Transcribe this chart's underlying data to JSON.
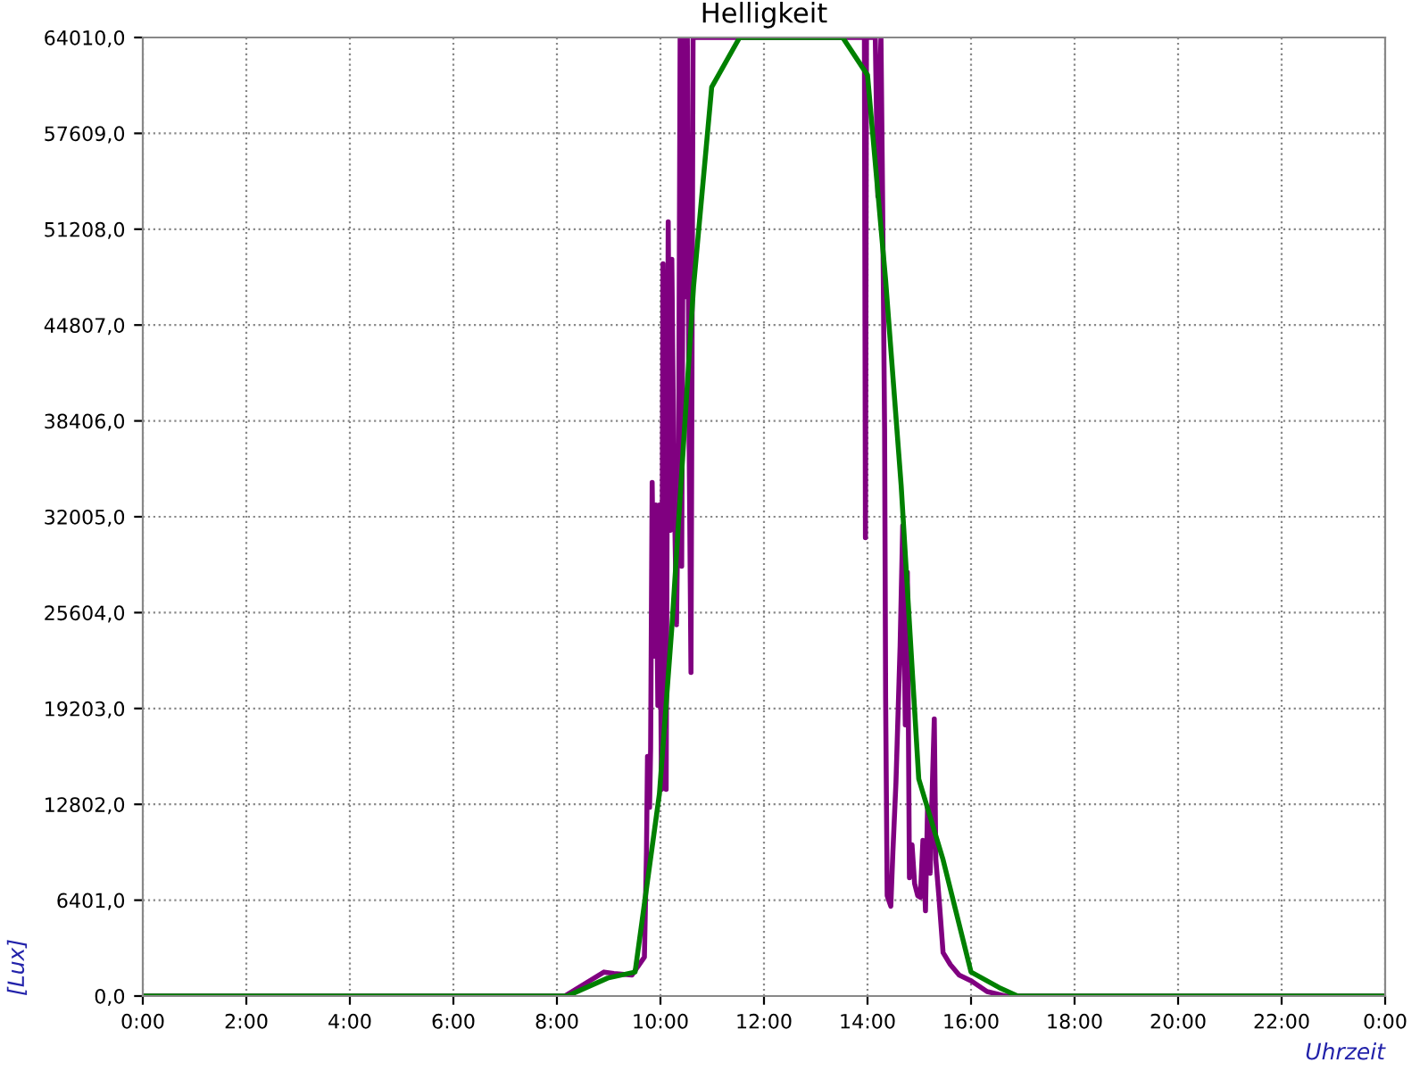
{
  "chart_data": {
    "type": "line",
    "title": "Helligkeit",
    "xlabel": "Uhrzeit",
    "ylabel": "[Lux]",
    "xlim": [
      0,
      24
    ],
    "xticks": [
      {
        "value": 0,
        "label": "0:00"
      },
      {
        "value": 2,
        "label": "2:00"
      },
      {
        "value": 4,
        "label": "4:00"
      },
      {
        "value": 6,
        "label": "6:00"
      },
      {
        "value": 8,
        "label": "8:00"
      },
      {
        "value": 10,
        "label": "10:00"
      },
      {
        "value": 12,
        "label": "12:00"
      },
      {
        "value": 14,
        "label": "14:00"
      },
      {
        "value": 16,
        "label": "16:00"
      },
      {
        "value": 18,
        "label": "18:00"
      },
      {
        "value": 20,
        "label": "20:00"
      },
      {
        "value": 22,
        "label": "22:00"
      },
      {
        "value": 24,
        "label": "0:00"
      }
    ],
    "ylim": [
      0,
      64010
    ],
    "yticks": [
      {
        "value": 0,
        "label": "0,0"
      },
      {
        "value": 6401,
        "label": "6401,0"
      },
      {
        "value": 12802,
        "label": "12802,0"
      },
      {
        "value": 19203,
        "label": "19203,0"
      },
      {
        "value": 25604,
        "label": "25604,0"
      },
      {
        "value": 32005,
        "label": "32005,0"
      },
      {
        "value": 38406,
        "label": "38406,0"
      },
      {
        "value": 44807,
        "label": "44807,0"
      },
      {
        "value": 51208,
        "label": "51208,0"
      },
      {
        "value": 57609,
        "label": "57609,0"
      },
      {
        "value": 64010,
        "label": "64010,0"
      }
    ],
    "grid": true,
    "marker": "none",
    "line_style": "solid",
    "series": [
      {
        "color": "#800080",
        "x": [
          0,
          8.15,
          8.91,
          9.1,
          9.45,
          9.69,
          9.73,
          9.75,
          9.79,
          9.81,
          9.84,
          9.88,
          9.91,
          9.95,
          9.98,
          10.02,
          10.05,
          10.08,
          10.11,
          10.15,
          10.19,
          10.22,
          10.26,
          10.31,
          10.35,
          10.38,
          10.41,
          10.45,
          10.48,
          10.52,
          10.55,
          10.59,
          10.63,
          13.94,
          13.96,
          13.98,
          14.15,
          14.2,
          14.22,
          14.26,
          14.29,
          14.33,
          14.35,
          14.38,
          14.45,
          14.49,
          14.55,
          14.63,
          14.68,
          14.73,
          14.77,
          14.81,
          14.86,
          14.91,
          14.97,
          15.02,
          15.07,
          15.12,
          15.16,
          15.21,
          15.24,
          15.29,
          15.32,
          15.38,
          15.46,
          15.6,
          15.77,
          16.01,
          16.31,
          16.66,
          24
        ],
        "values": [
          0,
          0,
          1600,
          1500,
          1400,
          2600,
          9600,
          16000,
          12600,
          16500,
          34300,
          22700,
          32800,
          19400,
          32800,
          13800,
          48900,
          24500,
          13800,
          51700,
          31100,
          49200,
          35300,
          24800,
          35500,
          64010,
          28700,
          64010,
          46700,
          64010,
          38900,
          21600,
          64010,
          64010,
          30600,
          64010,
          64010,
          53400,
          58600,
          64010,
          53800,
          37900,
          19900,
          6700,
          6000,
          9600,
          14300,
          23400,
          31400,
          18100,
          28300,
          7900,
          10100,
          7500,
          6700,
          6600,
          10400,
          5700,
          12600,
          8200,
          12600,
          18500,
          9100,
          6600,
          2900,
          2100,
          1400,
          1000,
          300,
          0,
          0
        ]
      },
      {
        "color": "#008000",
        "x": [
          0,
          8.2,
          8.98,
          9.51,
          9.98,
          10.22,
          10.64,
          10.99,
          11.53,
          13.52,
          14.0,
          14.35,
          14.65,
          14.99,
          15.46,
          16.0,
          16.54,
          16.9,
          24
        ],
        "values": [
          0,
          0,
          1200,
          1600,
          13500,
          24600,
          47400,
          60700,
          64010,
          64010,
          61500,
          47800,
          34100,
          14500,
          9100,
          1600,
          570,
          0,
          0
        ]
      }
    ]
  }
}
